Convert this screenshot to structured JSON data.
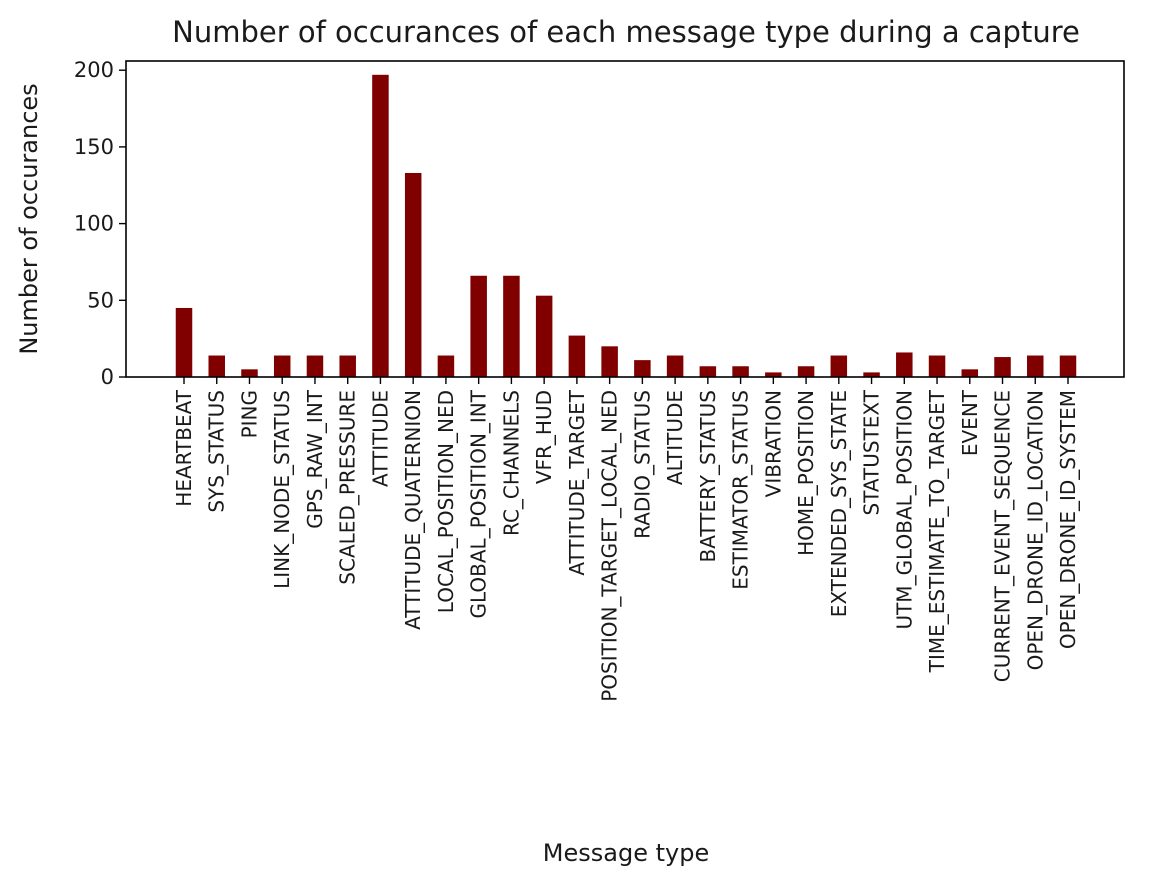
{
  "chart_data": {
    "type": "bar",
    "title": "Number of occurances of each message type during a capture",
    "xlabel": "Message type",
    "ylabel": "Number of occurances",
    "ylim": [
      0,
      206
    ],
    "yticks": [
      0,
      50,
      100,
      150,
      200
    ],
    "ytick_labels": [
      "0",
      "50",
      "100",
      "150",
      "200"
    ],
    "grid": false,
    "legend": "none",
    "bar_color": "#800000",
    "categories": [
      "HEARTBEAT",
      "SYS_STATUS",
      "PING",
      "LINK_NODE_STATUS",
      "GPS_RAW_INT",
      "SCALED_PRESSURE",
      "ATTITUDE",
      "ATTITUDE_QUATERNION",
      "LOCAL_POSITION_NED",
      "GLOBAL_POSITION_INT",
      "RC_CHANNELS",
      "VFR_HUD",
      "ATTITUDE_TARGET",
      "POSITION_TARGET_LOCAL_NED",
      "RADIO_STATUS",
      "ALTITUDE",
      "BATTERY_STATUS",
      "ESTIMATOR_STATUS",
      "VIBRATION",
      "HOME_POSITION",
      "EXTENDED_SYS_STATE",
      "STATUSTEXT",
      "UTM_GLOBAL_POSITION",
      "TIME_ESTIMATE_TO_TARGET",
      "EVENT",
      "CURRENT_EVENT_SEQUENCE",
      "OPEN_DRONE_ID_LOCATION",
      "OPEN_DRONE_ID_SYSTEM"
    ],
    "values": [
      45,
      14,
      5,
      14,
      14,
      14,
      197,
      133,
      14,
      66,
      66,
      53,
      27,
      20,
      11,
      14,
      7,
      7,
      3,
      7,
      14,
      3,
      16,
      14,
      5,
      13,
      14,
      14
    ]
  }
}
